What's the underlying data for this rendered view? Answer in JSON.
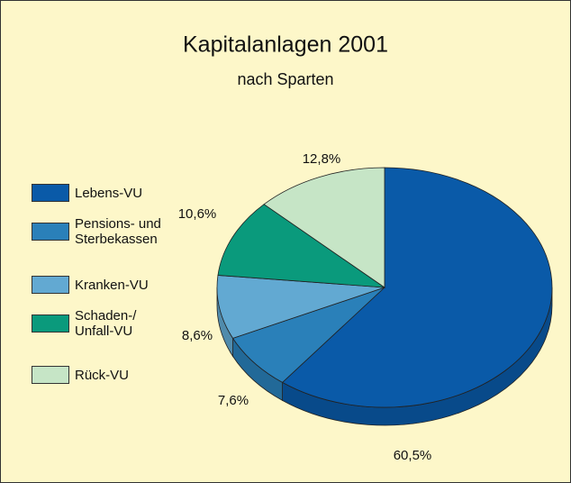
{
  "chart_data": {
    "type": "pie",
    "title": "Kapitalanlagen 2001",
    "subtitle": "nach Sparten",
    "categories": [
      "Lebens-VU",
      "Pensions- und Sterbekassen",
      "Kranken-VU",
      "Schaden-/ Unfall-VU",
      "Rück-VU"
    ],
    "values": [
      60.5,
      7.6,
      8.6,
      10.6,
      12.8
    ],
    "value_labels": [
      "60,5%",
      "7,6%",
      "8,6%",
      "10,6%",
      "12,8%"
    ],
    "colors": [
      "#0a5aa8",
      "#2a80b9",
      "#62a9d2",
      "#0a9a7c",
      "#c6e5c6"
    ],
    "legend": "left"
  }
}
